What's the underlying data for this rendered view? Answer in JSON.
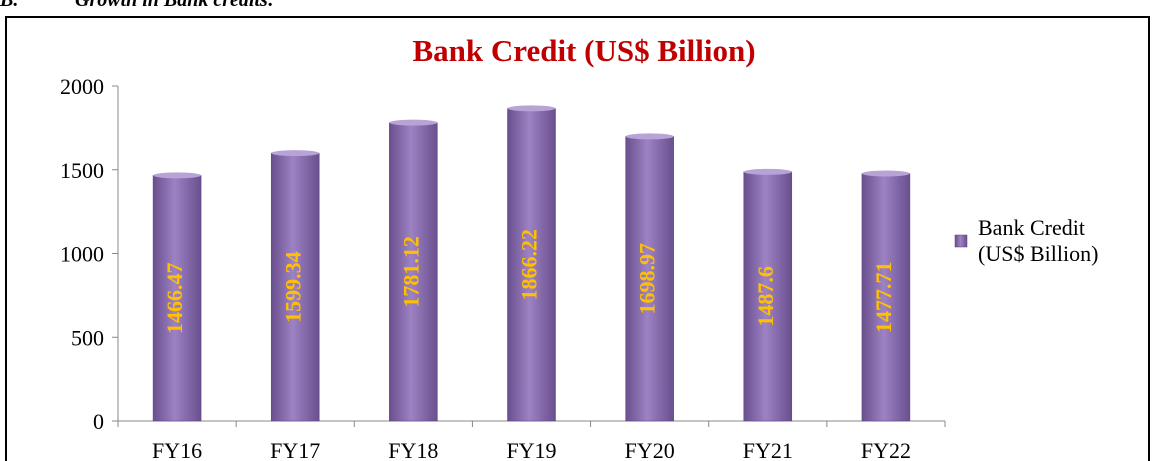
{
  "header": {
    "number": "B.",
    "text": "Growth in Bank credits:"
  },
  "chart_data": {
    "type": "bar",
    "title": "Bank Credit (US$ Billion)",
    "categories": [
      "FY16",
      "FY17",
      "FY18",
      "FY19",
      "FY20",
      "FY21",
      "FY22"
    ],
    "series": [
      {
        "name": "Bank Credit (US$ Billion)",
        "color": "#8064a2",
        "label_color": "#ffc000",
        "values": [
          1466.47,
          1599.34,
          1781.12,
          1866.22,
          1698.97,
          1487.6,
          1477.71
        ]
      }
    ],
    "ylim": [
      0,
      2000
    ],
    "yticks": [
      0,
      500,
      1000,
      1500,
      2000
    ],
    "legend": "right",
    "grid": false
  }
}
